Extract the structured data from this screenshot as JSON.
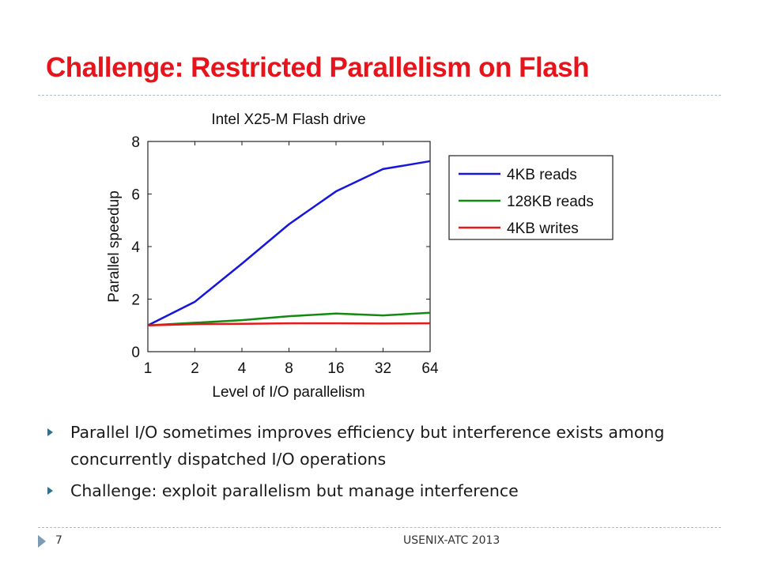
{
  "slide": {
    "title": "Challenge: Restricted Parallelism on Flash",
    "bullets": [
      "Parallel I/O sometimes improves efficiency but interference exists among concurrently dispatched I/O operations",
      "Challenge: exploit parallelism but manage interference"
    ],
    "page_number": "7",
    "conference": "USENIX-ATC 2013"
  },
  "chart_data": {
    "type": "line",
    "title": "Intel X25-M Flash drive",
    "xlabel": "Level of I/O parallelism",
    "ylabel": "Parallel speedup",
    "x": [
      "1",
      "2",
      "4",
      "8",
      "16",
      "32",
      "64"
    ],
    "ylim": [
      0,
      8
    ],
    "yticks": [
      "0",
      "2",
      "4",
      "6",
      "8"
    ],
    "grid": false,
    "legend_position": "right",
    "series": [
      {
        "name": "4KB reads",
        "color": "#1616dc",
        "values": [
          1.0,
          1.9,
          3.35,
          4.85,
          6.1,
          6.95,
          7.25
        ]
      },
      {
        "name": "128KB reads",
        "color": "#118a11",
        "values": [
          1.0,
          1.1,
          1.2,
          1.35,
          1.45,
          1.38,
          1.48
        ]
      },
      {
        "name": "4KB writes",
        "color": "#e41a1a",
        "values": [
          1.0,
          1.05,
          1.06,
          1.08,
          1.08,
          1.07,
          1.08
        ]
      }
    ]
  }
}
